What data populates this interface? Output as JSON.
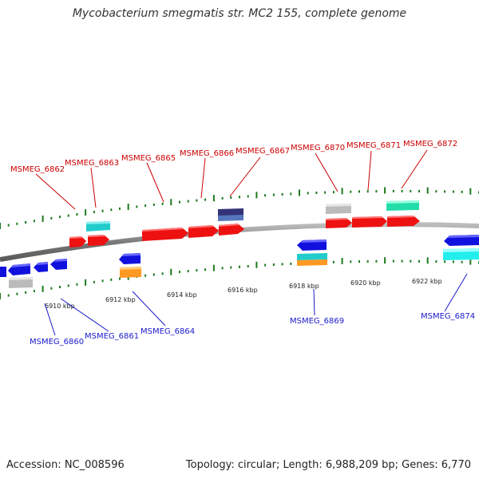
{
  "title": "Mycobacterium smegmatis str. MC2 155, complete genome",
  "footer": {
    "accession": "Accession: NC_008596",
    "stats": "Topology: circular; Length: 6,988,209 bp; Genes: 6,770"
  },
  "ticks": [
    "6910 kbp",
    "6912 kbp",
    "6914 kbp",
    "6916 kbp",
    "6918 kbp",
    "6920 kbp",
    "6922 kbp"
  ],
  "gene_labels_forward": [
    "MSMEG_6862",
    "MSMEG_6863",
    "MSMEG_6865",
    "MSMEG_6866",
    "MSMEG_6867",
    "MSMEG_6870",
    "MSMEG_6871",
    "MSMEG_6872"
  ],
  "gene_labels_reverse": [
    "MSMEG_6860",
    "MSMEG_6861",
    "MSMEG_6864",
    "MSMEG_6869",
    "MSMEG_6874"
  ],
  "colors": {
    "forward_cds": "#ee1111",
    "reverse_cds": "#1111dd",
    "label_forward": "#cc0000",
    "label_reverse": "#1a1acc",
    "backbone": "#808080",
    "tick": "#1f7a1f",
    "cyan": "#22cccc",
    "gray": "#bbbbbb",
    "orange": "#ff9922",
    "teal_green": "#22ddaa",
    "navy": "#333377"
  }
}
